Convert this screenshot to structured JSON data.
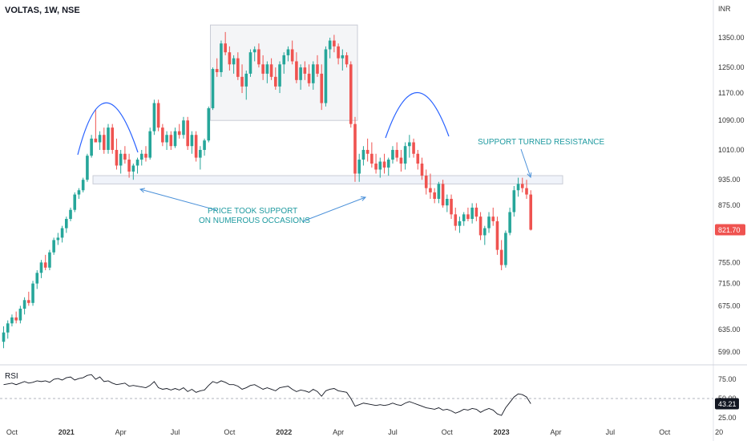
{
  "header": {
    "title": "VOLTAS, 1W, NSE",
    "currency": "INR"
  },
  "rsi": {
    "label": "RSI",
    "last": "43.21",
    "ticks": [
      "75.00",
      "50.00",
      "25.00"
    ],
    "tick_values": [
      75,
      50,
      25
    ],
    "reference": 50
  },
  "annotations": {
    "support_line1": "PRICE TOOK SUPPORT",
    "support_line2": "ON NUMEROUS OCCASIONS",
    "resistance": "SUPPORT TURNED RESISTANCE"
  },
  "colors": {
    "up": "#26a69a",
    "down": "#ef5350",
    "annotation": "#1e9aa0",
    "arc": "#2962ff",
    "last_price": "#ef5350"
  },
  "chart_data": {
    "type": "candlestick",
    "title": "VOLTAS, 1W, NSE",
    "ylabel": "INR",
    "y_scale": "log",
    "ylim": [
      580,
      1400
    ],
    "y_ticks": [
      1350,
      1250,
      1170,
      1090,
      1010,
      935,
      875,
      821.7,
      755,
      715,
      675,
      635,
      599
    ],
    "y_tick_labels": [
      "1350.00",
      "1250.00",
      "1170.00",
      "1090.00",
      "1010.00",
      "935.00",
      "875.00",
      "821.70",
      "755.00",
      "715.00",
      "675.00",
      "635.00",
      "599.00"
    ],
    "x_labels": [
      {
        "label": "Oct",
        "bold": false,
        "index": 2
      },
      {
        "label": "2021",
        "bold": true,
        "index": 15
      },
      {
        "label": "Apr",
        "bold": false,
        "index": 28
      },
      {
        "label": "Jul",
        "bold": false,
        "index": 41
      },
      {
        "label": "Oct",
        "bold": false,
        "index": 54
      },
      {
        "label": "2022",
        "bold": true,
        "index": 67
      },
      {
        "label": "Apr",
        "bold": false,
        "index": 80
      },
      {
        "label": "Jul",
        "bold": false,
        "index": 93
      },
      {
        "label": "Oct",
        "bold": false,
        "index": 106
      },
      {
        "label": "2023",
        "bold": true,
        "index": 119
      },
      {
        "label": "Apr",
        "bold": false,
        "index": 132
      },
      {
        "label": "Jul",
        "bold": false,
        "index": 145
      },
      {
        "label": "Oct",
        "bold": false,
        "index": 158
      },
      {
        "label": "20",
        "bold": false,
        "index": 171
      }
    ],
    "last_price": 821.7,
    "support_zone": [
      925,
      945
    ],
    "candles": [
      [
        615,
        640,
        605,
        630
      ],
      [
        630,
        650,
        620,
        645
      ],
      [
        645,
        660,
        640,
        655
      ],
      [
        655,
        665,
        645,
        650
      ],
      [
        650,
        675,
        645,
        670
      ],
      [
        670,
        690,
        660,
        685
      ],
      [
        685,
        700,
        675,
        680
      ],
      [
        680,
        720,
        675,
        715
      ],
      [
        715,
        740,
        705,
        735
      ],
      [
        735,
        760,
        725,
        755
      ],
      [
        755,
        770,
        740,
        745
      ],
      [
        745,
        780,
        740,
        775
      ],
      [
        775,
        805,
        770,
        800
      ],
      [
        800,
        815,
        790,
        805
      ],
      [
        805,
        830,
        795,
        825
      ],
      [
        825,
        850,
        815,
        845
      ],
      [
        845,
        870,
        840,
        865
      ],
      [
        865,
        905,
        860,
        900
      ],
      [
        900,
        915,
        890,
        910
      ],
      [
        910,
        940,
        905,
        935
      ],
      [
        935,
        1000,
        930,
        995
      ],
      [
        995,
        1050,
        990,
        1040
      ],
      [
        1040,
        1120,
        1030,
        1030
      ],
      [
        1030,
        1060,
        1010,
        1050
      ],
      [
        1050,
        1070,
        1000,
        1010
      ],
      [
        1010,
        1080,
        1000,
        1070
      ],
      [
        1070,
        1080,
        1000,
        1010
      ],
      [
        1010,
        1040,
        960,
        970
      ],
      [
        970,
        1010,
        950,
        1000
      ],
      [
        1000,
        1020,
        975,
        985
      ],
      [
        985,
        1000,
        940,
        955
      ],
      [
        955,
        975,
        935,
        970
      ],
      [
        970,
        990,
        950,
        985
      ],
      [
        985,
        1010,
        970,
        1000
      ],
      [
        1000,
        1020,
        980,
        990
      ],
      [
        990,
        1070,
        985,
        1060
      ],
      [
        1060,
        1150,
        1050,
        1140
      ],
      [
        1140,
        1150,
        1060,
        1070
      ],
      [
        1070,
        1080,
        1020,
        1030
      ],
      [
        1030,
        1060,
        1010,
        1050
      ],
      [
        1050,
        1060,
        1010,
        1020
      ],
      [
        1020,
        1070,
        1015,
        1060
      ],
      [
        1060,
        1080,
        1040,
        1050
      ],
      [
        1050,
        1100,
        1040,
        1090
      ],
      [
        1090,
        1100,
        1010,
        1020
      ],
      [
        1020,
        1060,
        1000,
        1050
      ],
      [
        1050,
        1060,
        980,
        990
      ],
      [
        990,
        1020,
        960,
        1010
      ],
      [
        1010,
        1040,
        995,
        1035
      ],
      [
        1035,
        1130,
        1030,
        1125
      ],
      [
        1125,
        1250,
        1120,
        1245
      ],
      [
        1245,
        1280,
        1220,
        1235
      ],
      [
        1235,
        1340,
        1220,
        1330
      ],
      [
        1330,
        1370,
        1290,
        1300
      ],
      [
        1300,
        1320,
        1240,
        1260
      ],
      [
        1260,
        1290,
        1230,
        1280
      ],
      [
        1280,
        1300,
        1210,
        1220
      ],
      [
        1220,
        1260,
        1170,
        1190
      ],
      [
        1190,
        1240,
        1150,
        1230
      ],
      [
        1230,
        1310,
        1220,
        1300
      ],
      [
        1300,
        1320,
        1270,
        1310
      ],
      [
        1310,
        1330,
        1250,
        1260
      ],
      [
        1260,
        1290,
        1210,
        1230
      ],
      [
        1230,
        1270,
        1200,
        1260
      ],
      [
        1260,
        1280,
        1210,
        1220
      ],
      [
        1220,
        1250,
        1180,
        1190
      ],
      [
        1190,
        1270,
        1170,
        1260
      ],
      [
        1260,
        1300,
        1230,
        1290
      ],
      [
        1290,
        1320,
        1270,
        1310
      ],
      [
        1310,
        1340,
        1260,
        1270
      ],
      [
        1270,
        1300,
        1200,
        1210
      ],
      [
        1210,
        1260,
        1180,
        1250
      ],
      [
        1250,
        1270,
        1210,
        1230
      ],
      [
        1230,
        1260,
        1190,
        1200
      ],
      [
        1200,
        1270,
        1180,
        1260
      ],
      [
        1260,
        1290,
        1220,
        1230
      ],
      [
        1230,
        1260,
        1120,
        1140
      ],
      [
        1140,
        1320,
        1130,
        1310
      ],
      [
        1310,
        1350,
        1280,
        1340
      ],
      [
        1340,
        1360,
        1300,
        1320
      ],
      [
        1320,
        1330,
        1260,
        1280
      ],
      [
        1280,
        1310,
        1240,
        1290
      ],
      [
        1290,
        1300,
        1250,
        1260
      ],
      [
        1260,
        1270,
        1070,
        1080
      ],
      [
        1080,
        1100,
        930,
        950
      ],
      [
        950,
        1000,
        930,
        985
      ],
      [
        985,
        1020,
        970,
        1010
      ],
      [
        1010,
        1040,
        980,
        1000
      ],
      [
        1000,
        1030,
        965,
        975
      ],
      [
        975,
        1000,
        950,
        960
      ],
      [
        960,
        990,
        940,
        980
      ],
      [
        980,
        1000,
        950,
        965
      ],
      [
        965,
        990,
        945,
        985
      ],
      [
        985,
        1020,
        975,
        1010
      ],
      [
        1010,
        1030,
        980,
        990
      ],
      [
        990,
        1010,
        955,
        975
      ],
      [
        975,
        1030,
        960,
        1020
      ],
      [
        1020,
        1050,
        990,
        1030
      ],
      [
        1030,
        1040,
        990,
        1000
      ],
      [
        1000,
        1010,
        960,
        975
      ],
      [
        975,
        990,
        935,
        945
      ],
      [
        945,
        960,
        900,
        915
      ],
      [
        915,
        950,
        890,
        905
      ],
      [
        905,
        915,
        880,
        890
      ],
      [
        890,
        930,
        880,
        925
      ],
      [
        925,
        935,
        870,
        875
      ],
      [
        875,
        900,
        860,
        890
      ],
      [
        890,
        900,
        845,
        855
      ],
      [
        855,
        870,
        820,
        830
      ],
      [
        830,
        850,
        815,
        840
      ],
      [
        840,
        860,
        830,
        855
      ],
      [
        855,
        870,
        840,
        845
      ],
      [
        845,
        880,
        835,
        870
      ],
      [
        870,
        880,
        840,
        850
      ],
      [
        850,
        860,
        800,
        810
      ],
      [
        810,
        830,
        790,
        825
      ],
      [
        825,
        860,
        815,
        850
      ],
      [
        850,
        870,
        830,
        840
      ],
      [
        840,
        850,
        770,
        780
      ],
      [
        780,
        800,
        740,
        750
      ],
      [
        750,
        820,
        745,
        815
      ],
      [
        815,
        870,
        810,
        860
      ],
      [
        860,
        920,
        850,
        910
      ],
      [
        910,
        940,
        895,
        925
      ],
      [
        925,
        940,
        905,
        915
      ],
      [
        915,
        935,
        890,
        900
      ],
      [
        900,
        910,
        820,
        821.7
      ]
    ],
    "rsi": [
      68,
      69,
      70,
      68,
      70,
      72,
      70,
      71,
      73,
      72,
      73,
      71,
      75,
      76,
      74,
      77,
      78,
      74,
      76,
      77,
      80,
      81,
      75,
      78,
      72,
      73,
      70,
      68,
      69,
      70,
      66,
      67,
      66,
      65,
      64,
      67,
      72,
      64,
      62,
      63,
      61,
      63,
      61,
      64,
      59,
      62,
      58,
      60,
      61,
      67,
      72,
      70,
      73,
      71,
      68,
      68,
      66,
      62,
      64,
      67,
      68,
      65,
      62,
      64,
      62,
      60,
      64,
      65,
      66,
      62,
      59,
      61,
      60,
      58,
      62,
      59,
      53,
      60,
      62,
      63,
      60,
      59,
      58,
      50,
      40,
      42,
      44,
      43,
      42,
      41,
      42,
      41,
      42,
      44,
      42,
      41,
      44,
      46,
      44,
      42,
      40,
      38,
      37,
      36,
      38,
      35,
      36,
      34,
      31,
      33,
      36,
      35,
      37,
      36,
      32,
      35,
      37,
      35,
      30,
      28,
      38,
      45,
      52,
      56,
      55,
      52,
      43.21
    ]
  }
}
